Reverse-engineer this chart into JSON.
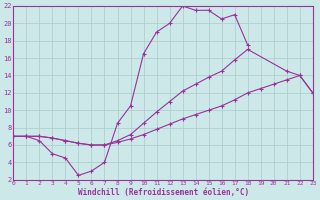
{
  "xlabel": "Windchill (Refroidissement éolien,°C)",
  "bg_color": "#cce8e8",
  "line_color": "#993399",
  "grid_color": "#aacccc",
  "xlim": [
    0,
    23
  ],
  "ylim": [
    2,
    22
  ],
  "xticks": [
    0,
    1,
    2,
    3,
    4,
    5,
    6,
    7,
    8,
    9,
    10,
    11,
    12,
    13,
    14,
    15,
    16,
    17,
    18,
    19,
    20,
    21,
    22,
    23
  ],
  "yticks": [
    2,
    4,
    6,
    8,
    10,
    12,
    14,
    16,
    18,
    20,
    22
  ],
  "curve1_x": [
    0,
    1,
    2,
    3,
    4,
    5,
    6,
    7,
    8,
    9,
    10,
    11,
    12,
    13,
    14,
    15,
    16,
    17,
    18
  ],
  "curve1_y": [
    7.0,
    7.0,
    6.5,
    5.0,
    4.5,
    2.5,
    3.0,
    4.0,
    8.5,
    10.5,
    16.5,
    19.0,
    20.0,
    22.0,
    21.5,
    21.5,
    20.5,
    21.0,
    17.5
  ],
  "curve2_x": [
    0,
    1,
    2,
    3,
    4,
    5,
    6,
    7,
    8,
    9,
    10,
    11,
    12,
    13,
    14,
    15,
    16,
    17,
    18,
    21,
    22,
    23
  ],
  "curve2_y": [
    7.0,
    7.0,
    7.0,
    6.8,
    6.5,
    6.2,
    6.0,
    6.0,
    6.5,
    7.2,
    8.5,
    9.8,
    11.0,
    12.2,
    13.0,
    13.8,
    14.5,
    15.8,
    17.0,
    14.5,
    14.0,
    12.0
  ],
  "curve3_x": [
    0,
    1,
    2,
    3,
    4,
    5,
    6,
    7,
    8,
    9,
    10,
    11,
    12,
    13,
    14,
    15,
    16,
    17,
    18,
    19,
    20,
    21,
    22,
    23
  ],
  "curve3_y": [
    7.0,
    7.0,
    7.0,
    6.8,
    6.5,
    6.2,
    6.0,
    6.0,
    6.3,
    6.7,
    7.2,
    7.8,
    8.4,
    9.0,
    9.5,
    10.0,
    10.5,
    11.2,
    12.0,
    12.5,
    13.0,
    13.5,
    14.0,
    12.0
  ]
}
